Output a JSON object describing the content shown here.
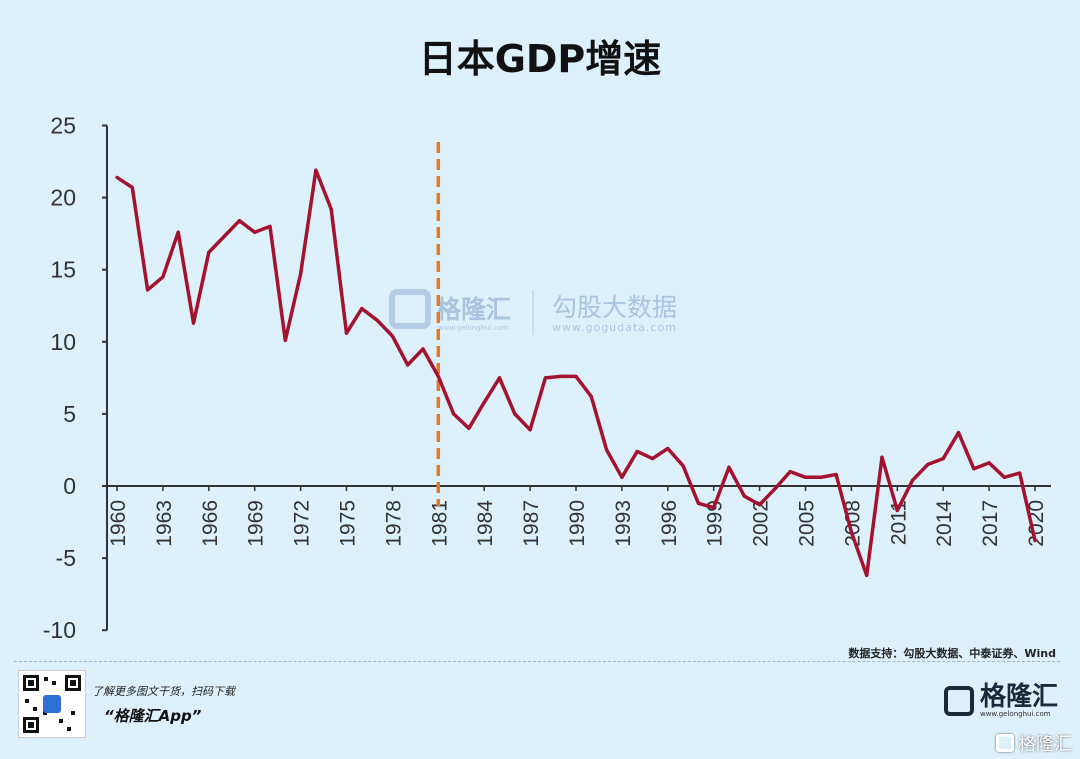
{
  "chart_data": {
    "type": "line",
    "title": "日本GDP增速",
    "xlabel": "",
    "ylabel": "",
    "ylim": [
      -10,
      25
    ],
    "yticks": [
      25,
      20,
      15,
      10,
      5,
      0,
      -5,
      -10
    ],
    "xtick_labels": [
      "1960",
      "1963",
      "1966",
      "1969",
      "1972",
      "1975",
      "1978",
      "1981",
      "1984",
      "1987",
      "1990",
      "1993",
      "1996",
      "1999",
      "2002",
      "2005",
      "2008",
      "2011",
      "2014",
      "2017",
      "2020"
    ],
    "series": [
      {
        "name": "日本GDP增速",
        "color": "#a5122e",
        "x": [
          1960,
          1961,
          1962,
          1963,
          1964,
          1965,
          1966,
          1967,
          1968,
          1969,
          1970,
          1971,
          1972,
          1973,
          1974,
          1975,
          1976,
          1977,
          1978,
          1979,
          1980,
          1981,
          1982,
          1983,
          1984,
          1985,
          1986,
          1987,
          1988,
          1989,
          1990,
          1991,
          1992,
          1993,
          1994,
          1995,
          1996,
          1997,
          1998,
          1999,
          2000,
          2001,
          2002,
          2003,
          2004,
          2005,
          2006,
          2007,
          2008,
          2009,
          2010,
          2011,
          2012,
          2013,
          2014,
          2015,
          2016,
          2017,
          2018,
          2019,
          2020
        ],
        "values": [
          21.4,
          20.7,
          13.6,
          14.5,
          17.6,
          11.3,
          16.2,
          17.3,
          18.4,
          17.6,
          18.0,
          10.1,
          14.7,
          21.9,
          19.2,
          10.6,
          12.3,
          11.5,
          10.4,
          8.4,
          9.5,
          7.6,
          5.0,
          4.0,
          5.8,
          7.5,
          5.0,
          3.9,
          7.5,
          7.6,
          7.6,
          6.2,
          2.5,
          0.6,
          2.4,
          1.9,
          2.6,
          1.4,
          -1.2,
          -1.5,
          1.3,
          -0.7,
          -1.3,
          -0.2,
          1.0,
          0.6,
          0.6,
          0.8,
          -3.2,
          -6.2,
          2.0,
          -1.7,
          0.4,
          1.5,
          1.9,
          3.7,
          1.2,
          1.6,
          0.6,
          0.9,
          -3.8
        ]
      }
    ],
    "annotations": [
      {
        "type": "vertical-dashed-line",
        "x": 1981,
        "color": "#e07a28"
      }
    ]
  },
  "header": {
    "title": "日本GDP增速"
  },
  "watermark": {
    "brand": "格隆汇",
    "brand_sub": "www.gelonghui.com",
    "partner": "勾股大数据",
    "partner_url": "www.gogudata.com"
  },
  "footer": {
    "source": "数据支持：勾股大数据、中泰证券、Wind",
    "promo_line1": "了解更多图文干货，扫码下载",
    "promo_line2": "“格隆汇App”",
    "brand_name": "格隆汇",
    "brand_url": "www.gelonghui.com",
    "corner_mark": "格隆汇"
  }
}
